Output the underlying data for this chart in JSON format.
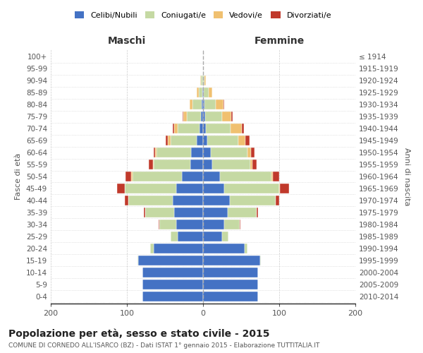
{
  "age_groups": [
    "0-4",
    "5-9",
    "10-14",
    "15-19",
    "20-24",
    "25-29",
    "30-34",
    "35-39",
    "40-44",
    "45-49",
    "50-54",
    "55-59",
    "60-64",
    "65-69",
    "70-74",
    "75-79",
    "80-84",
    "85-89",
    "90-94",
    "95-99",
    "100+"
  ],
  "birth_years": [
    "2010-2014",
    "2005-2009",
    "2000-2004",
    "1995-1999",
    "1990-1994",
    "1985-1989",
    "1980-1984",
    "1975-1979",
    "1970-1974",
    "1965-1969",
    "1960-1964",
    "1955-1959",
    "1950-1954",
    "1945-1949",
    "1940-1944",
    "1935-1939",
    "1930-1934",
    "1925-1929",
    "1920-1924",
    "1915-1919",
    "≤ 1914"
  ],
  "males_celibe": [
    80,
    80,
    80,
    85,
    65,
    33,
    35,
    38,
    40,
    35,
    28,
    17,
    16,
    8,
    5,
    3,
    2,
    1,
    0,
    0,
    0
  ],
  "males_coniugato": [
    0,
    0,
    0,
    1,
    4,
    10,
    22,
    38,
    58,
    68,
    65,
    48,
    45,
    35,
    28,
    18,
    12,
    5,
    3,
    0,
    0
  ],
  "males_vedovo": [
    0,
    0,
    0,
    0,
    0,
    0,
    0,
    0,
    0,
    0,
    1,
    1,
    2,
    3,
    5,
    5,
    4,
    2,
    1,
    0,
    0
  ],
  "males_divorziato": [
    0,
    0,
    0,
    0,
    0,
    0,
    1,
    2,
    5,
    10,
    8,
    5,
    2,
    3,
    2,
    1,
    0,
    0,
    0,
    0,
    0
  ],
  "females_nubile": [
    72,
    72,
    72,
    75,
    55,
    25,
    28,
    32,
    35,
    28,
    22,
    12,
    10,
    6,
    4,
    3,
    2,
    1,
    0,
    0,
    0
  ],
  "females_coniugata": [
    0,
    0,
    0,
    1,
    3,
    8,
    20,
    38,
    60,
    72,
    68,
    50,
    48,
    40,
    32,
    22,
    15,
    6,
    2,
    0,
    0
  ],
  "females_vedova": [
    0,
    0,
    0,
    0,
    0,
    0,
    0,
    0,
    0,
    1,
    2,
    3,
    5,
    10,
    15,
    12,
    10,
    5,
    2,
    0,
    0
  ],
  "females_divorziata": [
    0,
    0,
    0,
    0,
    0,
    0,
    1,
    2,
    5,
    12,
    8,
    5,
    5,
    5,
    3,
    2,
    1,
    0,
    0,
    0,
    0
  ],
  "colors": {
    "celibe": "#4472c4",
    "coniugato": "#c5d9a3",
    "vedovo": "#f0c070",
    "divorziato": "#c0392b"
  },
  "legend_labels": [
    "Celibi/Nubili",
    "Coniugati/e",
    "Vedovi/e",
    "Divorziati/e"
  ],
  "title": "Popolazione per età, sesso e stato civile - 2015",
  "subtitle": "COMUNE DI CORNEDO ALL'ISARCO (BZ) - Dati ISTAT 1° gennaio 2015 - Elaborazione TUTTITALIA.IT",
  "xlabel_left": "Maschi",
  "xlabel_right": "Femmine",
  "ylabel_left": "Fasce di età",
  "ylabel_right": "Anni di nascita",
  "xlim": 200,
  "background_color": "#ffffff",
  "grid_color": "#cccccc"
}
